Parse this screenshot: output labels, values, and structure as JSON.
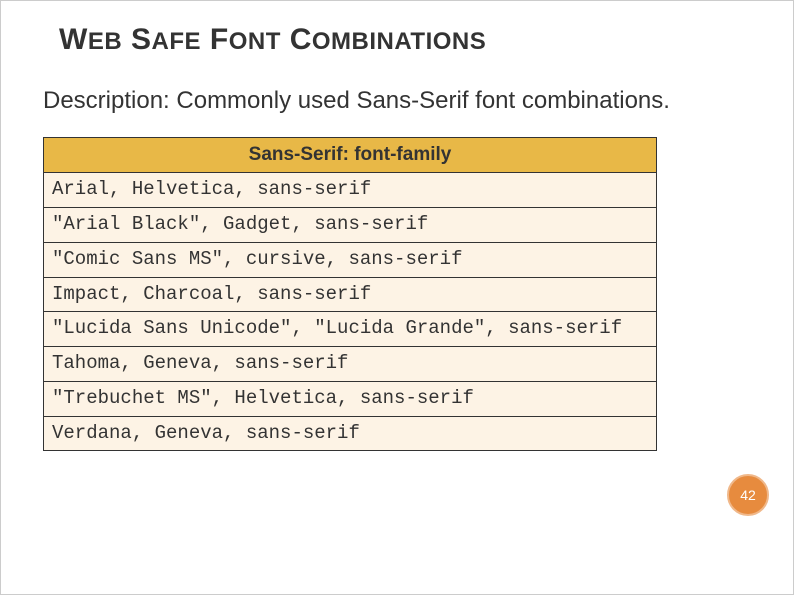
{
  "title": {
    "parts": [
      {
        "big": "W",
        "small": "EB"
      },
      {
        "big": " S",
        "small": "AFE"
      },
      {
        "big": " F",
        "small": "ONT"
      },
      {
        "big": " C",
        "small": "OMBINATIONS"
      }
    ]
  },
  "description": "Description: Commonly used Sans-Serif font combinations.",
  "table": {
    "header": "Sans-Serif: font-family",
    "header_bg": "#e8b847",
    "cell_bg": "#fdf3e5",
    "border_color": "#333333",
    "font_family_header": "Arial, sans-serif",
    "font_family_cells": "Courier New, monospace",
    "font_size": 19,
    "rows": [
      "Arial, Helvetica, sans-serif",
      "\"Arial Black\", Gadget, sans-serif",
      "\"Comic Sans MS\", cursive, sans-serif",
      "Impact, Charcoal, sans-serif",
      "\"Lucida Sans Unicode\", \"Lucida Grande\", sans-serif",
      "Tahoma, Geneva, sans-serif",
      "\"Trebuchet MS\", Helvetica, sans-serif",
      "Verdana, Geneva, sans-serif"
    ]
  },
  "page_number": "42",
  "badge_bg": "#e78b3e",
  "badge_border": "#f0b88a",
  "badge_text_color": "#ffffff"
}
